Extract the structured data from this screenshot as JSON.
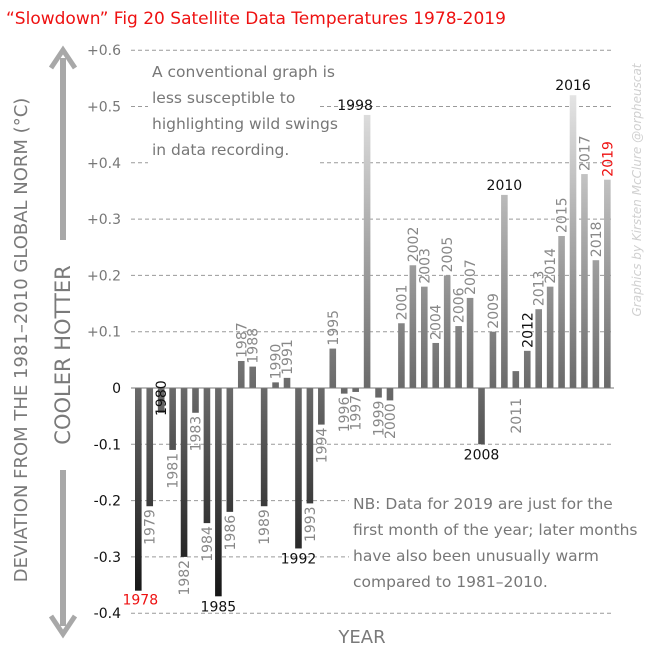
{
  "chart_data": {
    "type": "bar",
    "title": "“Slowdown” Fig 20 Satellite Data Temperatures 1978-2019",
    "xlabel": "YEAR",
    "ylabel": "DEVIATION FROM THE 1981–2010 GLOBAL NORM (°C)",
    "arrow_labels": {
      "down": "COOLER",
      "up": "HOTTER"
    },
    "ylim": [
      -0.4,
      0.6
    ],
    "grid": true,
    "yticks": [
      {
        "value": 0.6,
        "label": "+0.6",
        "color": "#777777"
      },
      {
        "value": 0.5,
        "label": "+0.5",
        "color": "#777777"
      },
      {
        "value": 0.4,
        "label": "+0.4",
        "color": "#777777"
      },
      {
        "value": 0.3,
        "label": "+0.3",
        "color": "#777777"
      },
      {
        "value": 0.2,
        "label": "+0.2",
        "color": "#777777"
      },
      {
        "value": 0.1,
        "label": "+0.1",
        "color": "#777777"
      },
      {
        "value": 0.0,
        "label": "0",
        "color": "#111111"
      },
      {
        "value": -0.1,
        "label": "-0.1",
        "color": "#111111"
      },
      {
        "value": -0.2,
        "label": "-0.2",
        "color": "#111111"
      },
      {
        "value": -0.3,
        "label": "-0.3",
        "color": "#111111"
      },
      {
        "value": -0.4,
        "label": "-0.4",
        "color": "#111111"
      }
    ],
    "categories": [
      "1978",
      "1979",
      "1980",
      "1981",
      "1982",
      "1983",
      "1984",
      "1985",
      "1986",
      "1987",
      "1988",
      "1989",
      "1990",
      "1991",
      "1992",
      "1993",
      "1994",
      "1995",
      "1996",
      "1997",
      "1998",
      "1999",
      "2000",
      "2001",
      "2002",
      "2003",
      "2004",
      "2005",
      "2006",
      "2007",
      "2008",
      "2009",
      "2010",
      "2011",
      "2012",
      "2013",
      "2014",
      "2015",
      "2016",
      "2017",
      "2018",
      "2019"
    ],
    "values": [
      -0.36,
      -0.21,
      -0.044,
      -0.11,
      -0.3,
      -0.044,
      -0.24,
      -0.37,
      -0.22,
      0.048,
      0.038,
      -0.21,
      0.01,
      0.018,
      -0.285,
      -0.205,
      -0.065,
      0.07,
      -0.01,
      -0.007,
      0.485,
      -0.017,
      -0.022,
      0.115,
      0.218,
      0.18,
      0.08,
      0.2,
      0.11,
      0.16,
      -0.1,
      0.1,
      0.343,
      0.03,
      0.066,
      0.14,
      0.18,
      0.27,
      0.52,
      0.38,
      0.227,
      0.37
    ],
    "label_styles": {
      "highlight_black": [
        "1980",
        "1985",
        "1992",
        "1998",
        "2008",
        "2010",
        "2012",
        "2016"
      ],
      "highlight_red": [
        "1978",
        "2019"
      ]
    },
    "annotations": [
      {
        "id": "top-note",
        "lines": [
          "A conventional graph is",
          "less susceptible to",
          "highlighting wild swings",
          "in data recording."
        ]
      },
      {
        "id": "bottom-note",
        "lines": [
          "NB: Data for 2019 are just for the",
          "first month of the year; later months",
          "have also been unusually warm",
          "compared to 1981–2010."
        ]
      }
    ],
    "credit": "Graphics by Kirsten McClure @orpheuscat"
  },
  "colors": {
    "title": "#ee1111",
    "red_label": "#ee1111",
    "black_label": "#111111",
    "gray_label": "#888888",
    "arrow": "#a8a8a8",
    "bar_dark": "#1a1a1a",
    "bar_mid": "#6a6a6a",
    "bar_light": "#e4e4e4"
  }
}
